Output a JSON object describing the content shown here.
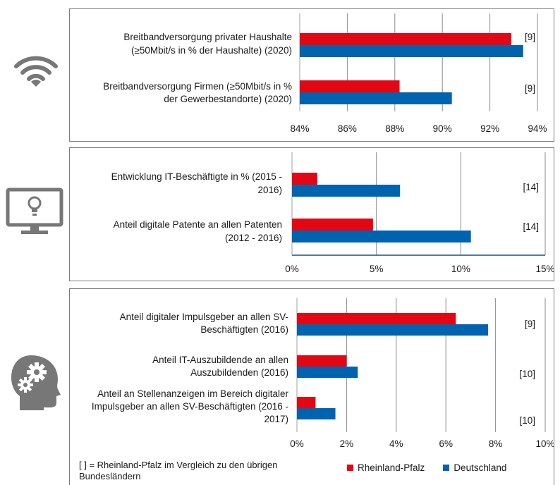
{
  "colors": {
    "rlp": "#e30613",
    "de": "#0063b0",
    "grid": "#8c8c8c",
    "icon": "#777777"
  },
  "icons": [
    "wifi-icon",
    "monitor-lightbulb-icon",
    "head-gears-icon"
  ],
  "legend": {
    "note": "[ ] = Rheinland-Pfalz im Vergleich zu den übrigen Bundesländern",
    "series": [
      "Rheinland-Pfalz",
      "Deutschland"
    ]
  },
  "chart_data": [
    {
      "type": "bar",
      "orientation": "horizontal",
      "categories": [
        [
          "Breitbandversorgung privater Haushalte",
          "(≥50Mbit/s in % der Haushalte) (2020)"
        ],
        [
          "Breitbandversorgung Firmen (≥50Mbit/s in %",
          "der Gewerbestandorte) (2020)"
        ]
      ],
      "series": [
        {
          "name": "Rheinland-Pfalz",
          "values": [
            92.9,
            88.2
          ]
        },
        {
          "name": "Deutschland",
          "values": [
            93.4,
            90.4
          ]
        }
      ],
      "ranks": [
        "[9]",
        "[9]"
      ],
      "xlim": [
        84,
        94
      ],
      "xticks": [
        84,
        86,
        88,
        90,
        92,
        94
      ],
      "tick_labels": [
        "84%",
        "86%",
        "88%",
        "90%",
        "92%",
        "94%"
      ]
    },
    {
      "type": "bar",
      "orientation": "horizontal",
      "categories": [
        [
          "Entwicklung IT-Beschäftigte in % (2015 -",
          "2016)"
        ],
        [
          "Anteil digitale Patente an allen Patenten",
          "(2012 - 2016)"
        ]
      ],
      "series": [
        {
          "name": "Rheinland-Pfalz",
          "values": [
            1.5,
            4.8
          ]
        },
        {
          "name": "Deutschland",
          "values": [
            6.4,
            10.6
          ]
        }
      ],
      "ranks": [
        "[14]",
        "[14]"
      ],
      "xlim": [
        0,
        15
      ],
      "xticks": [
        0,
        5,
        10,
        15
      ],
      "tick_labels": [
        "0%",
        "5%",
        "10%",
        "15%"
      ]
    },
    {
      "type": "bar",
      "orientation": "horizontal",
      "categories": [
        [
          "Anteil digitaler Impulsgeber an allen SV-",
          "Beschäftigten (2016)"
        ],
        [
          "Anteil IT-Auszubildende an allen",
          "Auszubildenden (2016)"
        ],
        [
          "Anteil an Stellenanzeigen im Bereich digitaler",
          "Impulsgeber an allen SV-Beschäftigten (2016 -",
          "2017)"
        ]
      ],
      "series": [
        {
          "name": "Rheinland-Pfalz",
          "values": [
            6.4,
            2.0,
            0.75
          ]
        },
        {
          "name": "Deutschland",
          "values": [
            7.7,
            2.45,
            1.55
          ]
        }
      ],
      "ranks": [
        "[9]",
        "[10]",
        "[10]"
      ],
      "xlim": [
        0,
        10
      ],
      "xticks": [
        0,
        2,
        4,
        6,
        8,
        10
      ],
      "tick_labels": [
        "0%",
        "2%",
        "4%",
        "6%",
        "8%",
        "10%"
      ]
    }
  ]
}
